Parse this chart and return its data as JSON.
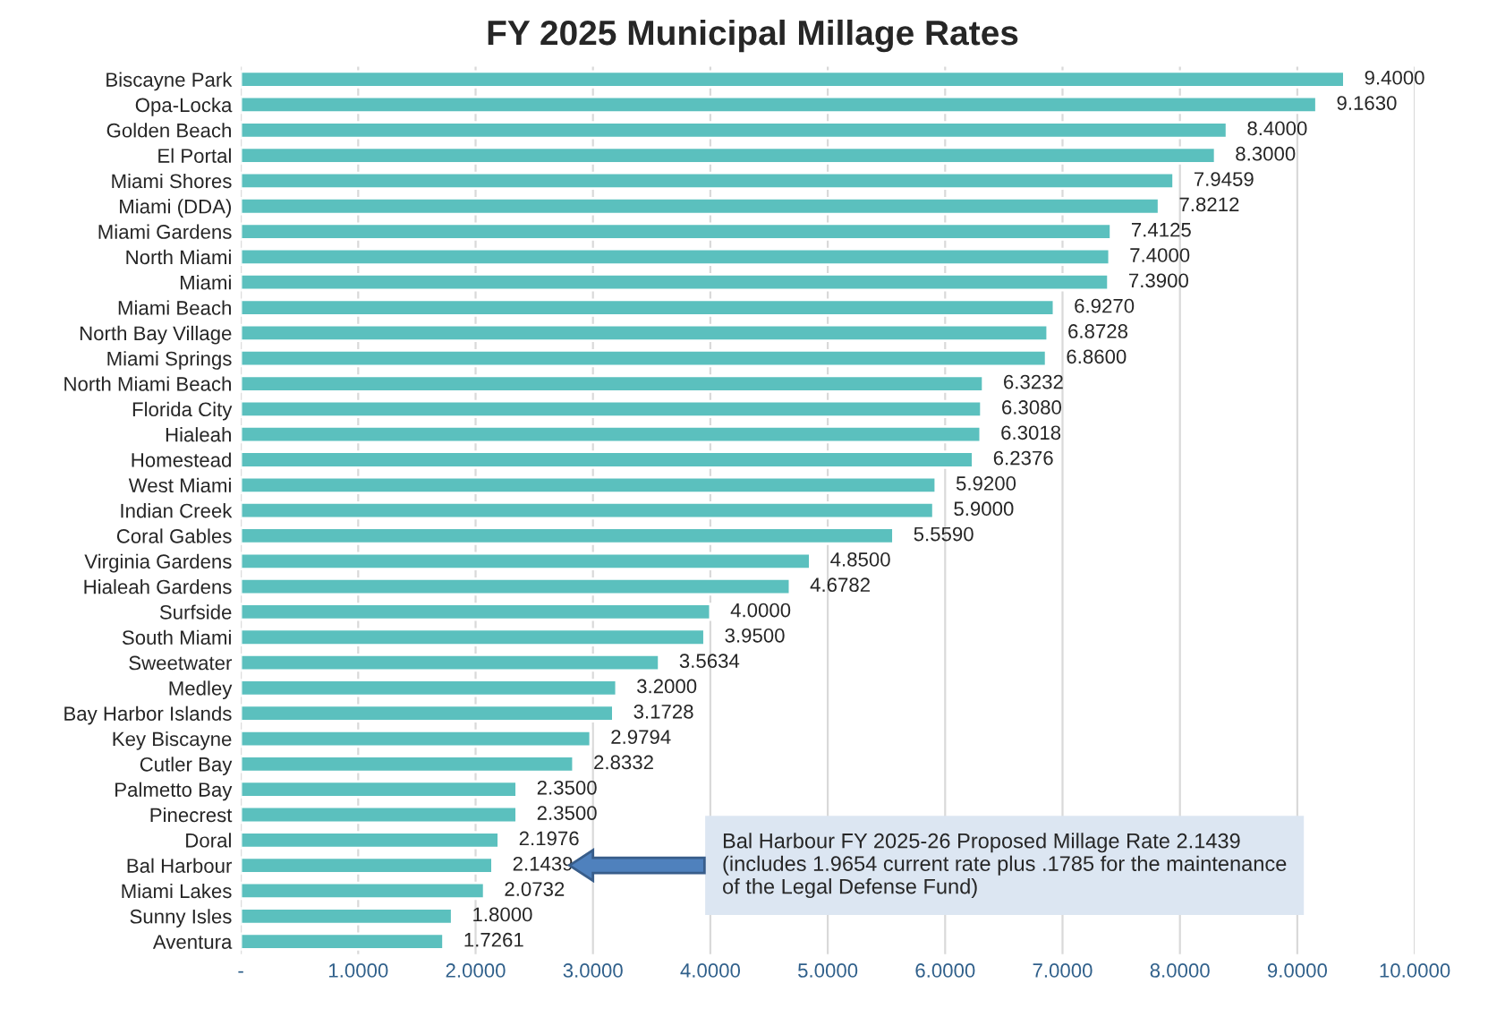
{
  "chart_data": {
    "type": "bar",
    "orientation": "horizontal",
    "title": "FY 2025 Municipal Millage Rates",
    "categories": [
      "Biscayne Park",
      "Opa-Locka",
      "Golden Beach",
      "El Portal",
      "Miami Shores",
      "Miami (DDA)",
      "Miami Gardens",
      "North Miami",
      "Miami",
      "Miami Beach",
      "North Bay Village",
      "Miami Springs",
      "North Miami Beach",
      "Florida City",
      "Hialeah",
      "Homestead",
      "West Miami",
      "Indian Creek",
      "Coral Gables",
      "Virginia Gardens",
      "Hialeah Gardens",
      "Surfside",
      "South Miami",
      "Sweetwater",
      "Medley",
      "Bay Harbor Islands",
      "Key Biscayne",
      "Cutler Bay",
      "Palmetto Bay",
      "Pinecrest",
      "Doral",
      "Bal Harbour",
      "Miami Lakes",
      "Sunny Isles",
      "Aventura"
    ],
    "values": [
      9.4,
      9.163,
      8.4,
      8.3,
      7.9459,
      7.8212,
      7.4125,
      7.4,
      7.39,
      6.927,
      6.8728,
      6.86,
      6.3232,
      6.308,
      6.3018,
      6.2376,
      5.92,
      5.9,
      5.559,
      4.85,
      4.6782,
      4.0,
      3.95,
      3.5634,
      3.2,
      3.1728,
      2.9794,
      2.8332,
      2.35,
      2.35,
      2.1976,
      2.1439,
      2.0732,
      1.8,
      1.7261
    ],
    "value_labels": [
      "9.4000",
      "9.1630",
      "8.4000",
      "8.3000",
      "7.9459",
      "7.8212",
      "7.4125",
      "7.4000",
      "7.3900",
      "6.9270",
      "6.8728",
      "6.8600",
      "6.3232",
      "6.3080",
      "6.3018",
      "6.2376",
      "5.9200",
      "5.9000",
      "5.5590",
      "4.8500",
      "4.6782",
      "4.0000",
      "3.9500",
      "3.5634",
      "3.2000",
      "3.1728",
      "2.9794",
      "2.8332",
      "2.3500",
      "2.3500",
      "2.1976",
      "2.1439",
      "2.0732",
      "1.8000",
      "1.7261"
    ],
    "color": "#5bc0be",
    "xlim": [
      0,
      10
    ],
    "xticks": [
      {
        "value": 0,
        "label": "-"
      },
      {
        "value": 1,
        "label": "1.0000"
      },
      {
        "value": 2,
        "label": "2.0000"
      },
      {
        "value": 3,
        "label": "3.0000"
      },
      {
        "value": 4,
        "label": "4.0000"
      },
      {
        "value": 5,
        "label": "5.0000"
      },
      {
        "value": 6,
        "label": "6.0000"
      },
      {
        "value": 7,
        "label": "7.0000"
      },
      {
        "value": 8,
        "label": "8.0000"
      },
      {
        "value": 9,
        "label": "9.0000"
      },
      {
        "value": 10,
        "label": "10.0000"
      }
    ],
    "grid": "x",
    "annotations": [
      "Bal Harbour FY 2025-26 Proposed Millage Rate 2.1439\n(includes 1.9654 current rate plus .1785 for the maintenance\nof the Legal Defense Fund)"
    ]
  }
}
